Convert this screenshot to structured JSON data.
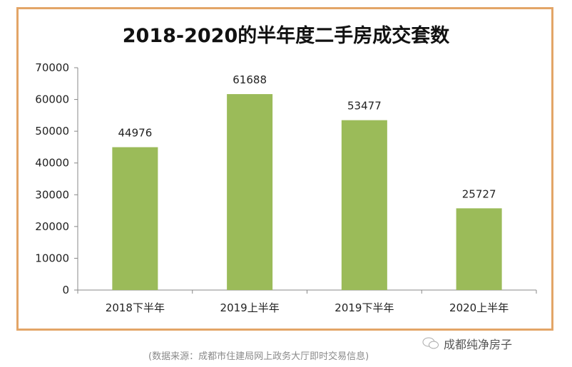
{
  "chart_data": {
    "type": "bar",
    "title": "2018-2020的半年度二手房成交套数",
    "categories": [
      "2018下半年",
      "2019上半年",
      "2019下半年",
      "2020上半年"
    ],
    "values": [
      44976,
      61688,
      53477,
      25727
    ],
    "data_labels": [
      "44976",
      "61688",
      "53477",
      "25727"
    ],
    "ylim": [
      0,
      70000
    ],
    "yticks": [
      "0",
      "10000",
      "20000",
      "30000",
      "40000",
      "50000",
      "60000",
      "70000"
    ],
    "grid": false,
    "legend": "none",
    "bar_color": "#9bbb59",
    "border_color": "#e3a567"
  },
  "source": "(数据来源：成都市住建局网上政务大厅即时交易信息)",
  "watermark": {
    "icon": "wechat-icon",
    "text": "成都纯净房子"
  }
}
